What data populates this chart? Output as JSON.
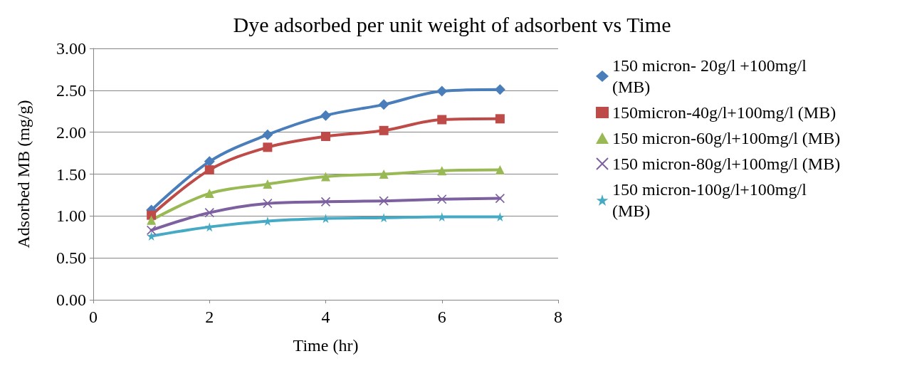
{
  "chart_data": {
    "type": "line",
    "title": "Dye adsorbed per unit weight of adsorbent vs Time",
    "xlabel": "Time (hr)",
    "ylabel": "Adsorbed MB (mg/g)",
    "x": [
      1,
      2,
      3,
      4,
      5,
      6,
      7
    ],
    "xlim": [
      0,
      8
    ],
    "xticks": [
      0,
      2,
      4,
      6,
      8
    ],
    "ylim": [
      0,
      3
    ],
    "yticks": [
      {
        "value": 0,
        "label": "0.00"
      },
      {
        "value": 0.5,
        "label": "0.50"
      },
      {
        "value": 1,
        "label": "1.00"
      },
      {
        "value": 1.5,
        "label": "1.50"
      },
      {
        "value": 2,
        "label": "2.00"
      },
      {
        "value": 2.5,
        "label": "2.50"
      },
      {
        "value": 3,
        "label": "3.00"
      }
    ],
    "grid": "y",
    "legend": "right",
    "line_style": "solid",
    "series": [
      {
        "name": "150 micron- 20g/l +100mg/l (MB)",
        "color": "#4a7ebb",
        "marker": "diamond",
        "values": [
          1.07,
          1.65,
          1.97,
          2.2,
          2.33,
          2.49,
          2.51
        ]
      },
      {
        "name": "150micron-40g/l+100mg/l (MB)",
        "color": "#be4b48",
        "marker": "square",
        "values": [
          1.01,
          1.55,
          1.82,
          1.95,
          2.02,
          2.15,
          2.16
        ]
      },
      {
        "name": "150 micron-60g/l+100mg/l (MB)",
        "color": "#98b954",
        "marker": "triangle",
        "values": [
          0.95,
          1.27,
          1.38,
          1.47,
          1.5,
          1.54,
          1.55
        ]
      },
      {
        "name": "150 micron-80g/l+100mg/l (MB)",
        "color": "#7d60a0",
        "marker": "cross",
        "values": [
          0.83,
          1.04,
          1.15,
          1.17,
          1.18,
          1.2,
          1.21
        ]
      },
      {
        "name": "150 micron-100g/l+100mg/l (MB)",
        "color": "#46aac5",
        "marker": "star",
        "values": [
          0.76,
          0.87,
          0.94,
          0.97,
          0.98,
          0.99,
          0.99
        ]
      }
    ]
  }
}
